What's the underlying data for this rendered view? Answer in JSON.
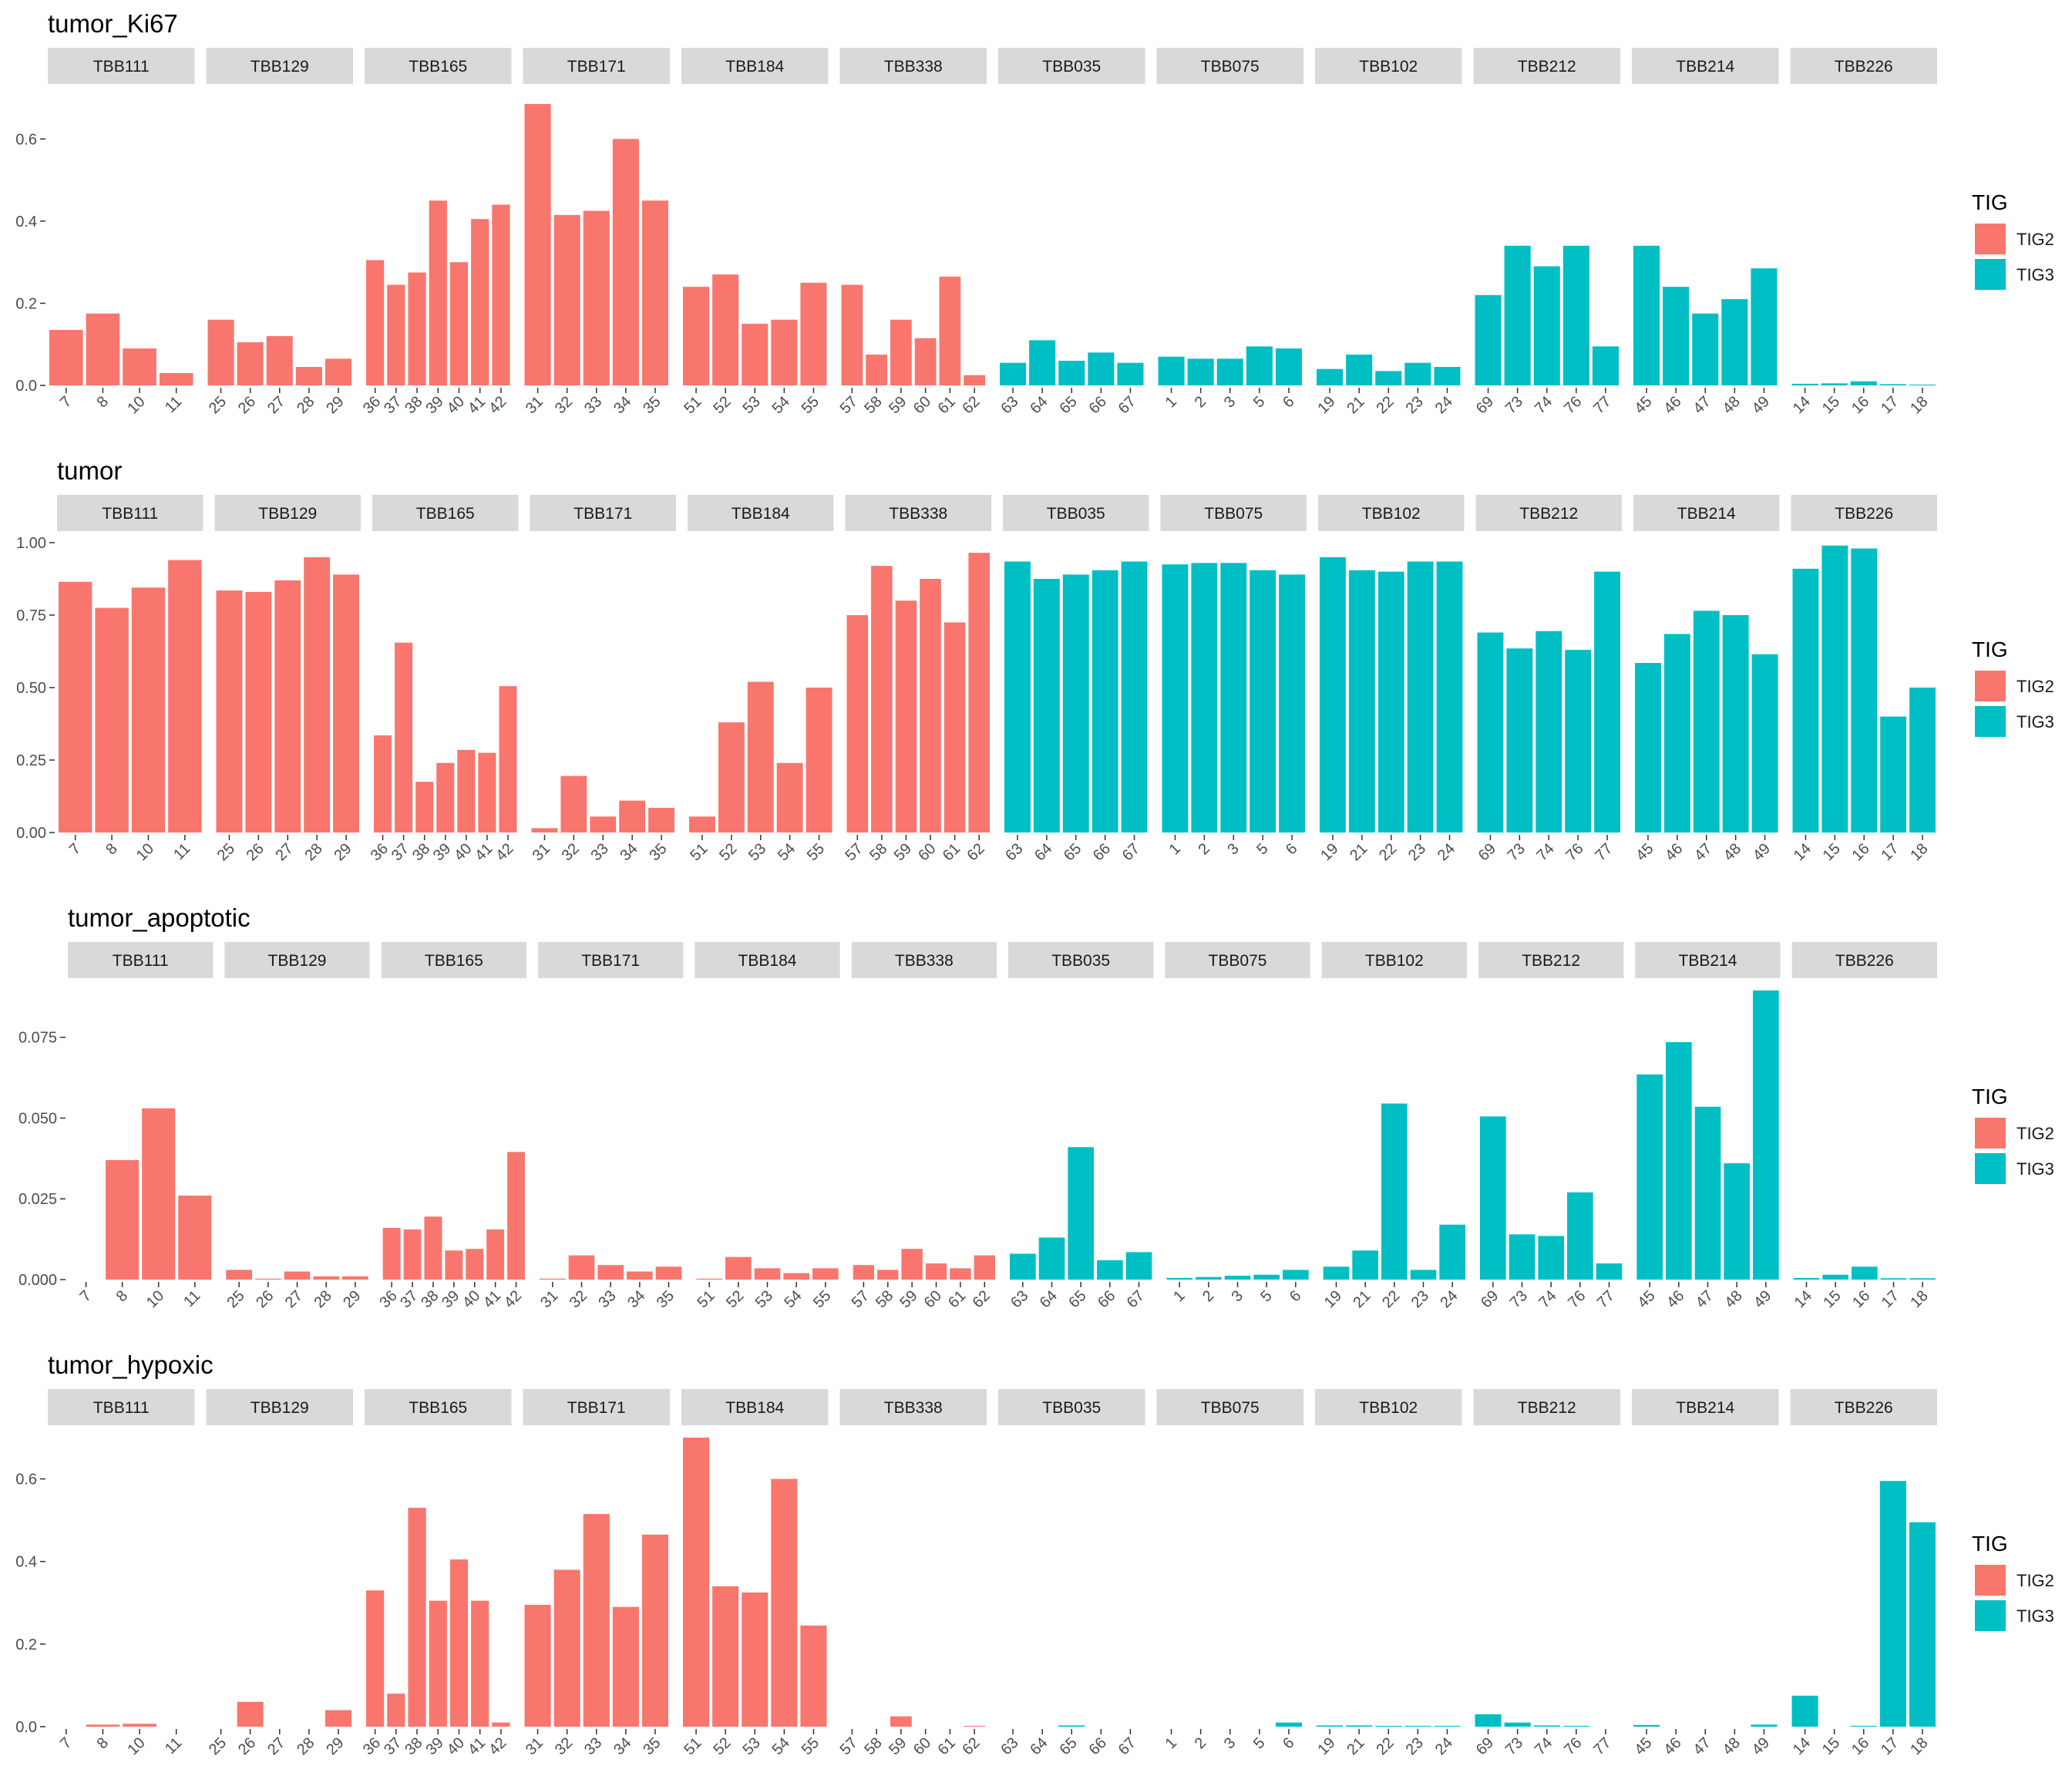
{
  "legend": {
    "title": "TIG",
    "items": [
      {
        "label": "TIG2",
        "color": "#F8766D"
      },
      {
        "label": "TIG3",
        "color": "#00BFC4"
      }
    ]
  },
  "patients": [
    {
      "name": "TBB111",
      "group": "TIG2",
      "samples": [
        "7",
        "8",
        "10",
        "11"
      ]
    },
    {
      "name": "TBB129",
      "group": "TIG2",
      "samples": [
        "25",
        "26",
        "27",
        "28",
        "29"
      ]
    },
    {
      "name": "TBB165",
      "group": "TIG2",
      "samples": [
        "36",
        "37",
        "38",
        "39",
        "40",
        "41",
        "42"
      ]
    },
    {
      "name": "TBB171",
      "group": "TIG2",
      "samples": [
        "31",
        "32",
        "33",
        "34",
        "35"
      ]
    },
    {
      "name": "TBB184",
      "group": "TIG2",
      "samples": [
        "51",
        "52",
        "53",
        "54",
        "55"
      ]
    },
    {
      "name": "TBB338",
      "group": "TIG2",
      "samples": [
        "57",
        "58",
        "59",
        "60",
        "61",
        "62"
      ]
    },
    {
      "name": "TBB035",
      "group": "TIG3",
      "samples": [
        "63",
        "64",
        "65",
        "66",
        "67"
      ]
    },
    {
      "name": "TBB075",
      "group": "TIG3",
      "samples": [
        "1",
        "2",
        "3",
        "5",
        "6"
      ]
    },
    {
      "name": "TBB102",
      "group": "TIG3",
      "samples": [
        "19",
        "21",
        "22",
        "23",
        "24"
      ]
    },
    {
      "name": "TBB212",
      "group": "TIG3",
      "samples": [
        "69",
        "73",
        "74",
        "76",
        "77"
      ]
    },
    {
      "name": "TBB214",
      "group": "TIG3",
      "samples": [
        "45",
        "46",
        "47",
        "48",
        "49"
      ]
    },
    {
      "name": "TBB226",
      "group": "TIG3",
      "samples": [
        "14",
        "15",
        "16",
        "17",
        "18"
      ]
    }
  ],
  "chart_data": [
    {
      "type": "bar",
      "title": "tumor_Ki67",
      "ylim": [
        0,
        0.7
      ],
      "yticks": [
        0,
        0.2,
        0.4,
        0.6
      ],
      "ytick_labels": [
        "0.0",
        "0.2",
        "0.4",
        "0.6"
      ],
      "values": [
        [
          0.135,
          0.175,
          0.09,
          0.03
        ],
        [
          0.16,
          0.105,
          0.12,
          0.045,
          0.065
        ],
        [
          0.305,
          0.245,
          0.275,
          0.45,
          0.3,
          0.405,
          0.44
        ],
        [
          0.685,
          0.415,
          0.425,
          0.6,
          0.45
        ],
        [
          0.24,
          0.27,
          0.15,
          0.16,
          0.25
        ],
        [
          0.245,
          0.075,
          0.16,
          0.115,
          0.265,
          0.025
        ],
        [
          0.055,
          0.11,
          0.06,
          0.08,
          0.055
        ],
        [
          0.07,
          0.065,
          0.065,
          0.095,
          0.09
        ],
        [
          0.04,
          0.075,
          0.035,
          0.055,
          0.045
        ],
        [
          0.22,
          0.34,
          0.29,
          0.34,
          0.095
        ],
        [
          0.34,
          0.24,
          0.175,
          0.21,
          0.285
        ],
        [
          0.004,
          0.005,
          0.01,
          0.003,
          0.002
        ]
      ]
    },
    {
      "type": "bar",
      "title": "tumor",
      "ylim": [
        0,
        1.0
      ],
      "yticks": [
        0,
        0.25,
        0.5,
        0.75,
        1.0
      ],
      "ytick_labels": [
        "0.00",
        "0.25",
        "0.50",
        "0.75",
        "1.00"
      ],
      "values": [
        [
          0.865,
          0.775,
          0.845,
          0.94
        ],
        [
          0.835,
          0.83,
          0.87,
          0.95,
          0.89
        ],
        [
          0.335,
          0.655,
          0.175,
          0.24,
          0.285,
          0.275,
          0.505
        ],
        [
          0.015,
          0.195,
          0.055,
          0.11,
          0.085
        ],
        [
          0.055,
          0.38,
          0.52,
          0.24,
          0.5
        ],
        [
          0.75,
          0.92,
          0.8,
          0.875,
          0.725,
          0.965
        ],
        [
          0.935,
          0.875,
          0.89,
          0.905,
          0.935
        ],
        [
          0.925,
          0.93,
          0.93,
          0.905,
          0.89
        ],
        [
          0.95,
          0.905,
          0.9,
          0.935,
          0.935
        ],
        [
          0.69,
          0.635,
          0.695,
          0.63,
          0.9
        ],
        [
          0.585,
          0.685,
          0.765,
          0.75,
          0.615
        ],
        [
          0.91,
          0.99,
          0.98,
          0.4,
          0.5
        ]
      ]
    },
    {
      "type": "bar",
      "title": "tumor_apoptotic",
      "ylim": [
        0,
        0.089
      ],
      "yticks": [
        0,
        0.025,
        0.05,
        0.075
      ],
      "ytick_labels": [
        "0.000",
        "0.025",
        "0.050",
        "0.075"
      ],
      "values": [
        [
          0.0,
          0.037,
          0.053,
          0.026
        ],
        [
          0.003,
          0.0003,
          0.0025,
          0.001,
          0.001
        ],
        [
          0.016,
          0.0155,
          0.0195,
          0.009,
          0.0095,
          0.0155,
          0.0395
        ],
        [
          0.0003,
          0.0075,
          0.0045,
          0.0025,
          0.004
        ],
        [
          0.0003,
          0.007,
          0.0035,
          0.002,
          0.0035
        ],
        [
          0.0045,
          0.003,
          0.0095,
          0.005,
          0.0035,
          0.0075
        ],
        [
          0.008,
          0.013,
          0.041,
          0.006,
          0.0085
        ],
        [
          0.0005,
          0.0008,
          0.0012,
          0.0015,
          0.003
        ],
        [
          0.004,
          0.009,
          0.0545,
          0.003,
          0.017
        ],
        [
          0.0505,
          0.014,
          0.0135,
          0.027,
          0.005
        ],
        [
          0.0635,
          0.0735,
          0.0535,
          0.036,
          0.0895
        ],
        [
          0.0005,
          0.0015,
          0.004,
          0.0004,
          0.0004
        ]
      ]
    },
    {
      "type": "bar",
      "title": "tumor_hypoxic",
      "ylim": [
        0,
        0.7
      ],
      "yticks": [
        0,
        0.2,
        0.4,
        0.6
      ],
      "ytick_labels": [
        "0.0",
        "0.2",
        "0.4",
        "0.6"
      ],
      "values": [
        [
          0.0,
          0.005,
          0.007,
          0.0
        ],
        [
          0.0,
          0.06,
          0.0,
          0.0,
          0.04
        ],
        [
          0.33,
          0.08,
          0.53,
          0.305,
          0.405,
          0.305,
          0.01
        ],
        [
          0.295,
          0.38,
          0.515,
          0.29,
          0.465
        ],
        [
          0.7,
          0.34,
          0.325,
          0.6,
          0.245
        ],
        [
          0.0,
          0.0,
          0.025,
          0.0,
          0.0,
          0.002
        ],
        [
          0.0,
          0.0,
          0.003,
          0.0,
          0.0
        ],
        [
          0.0,
          0.0,
          0.0,
          0.0,
          0.01
        ],
        [
          0.003,
          0.003,
          0.002,
          0.002,
          0.002
        ],
        [
          0.03,
          0.01,
          0.003,
          0.002,
          0.0
        ],
        [
          0.004,
          0.0,
          0.0,
          0.0,
          0.005
        ],
        [
          0.075,
          0.0,
          0.002,
          0.595,
          0.495
        ]
      ]
    }
  ]
}
